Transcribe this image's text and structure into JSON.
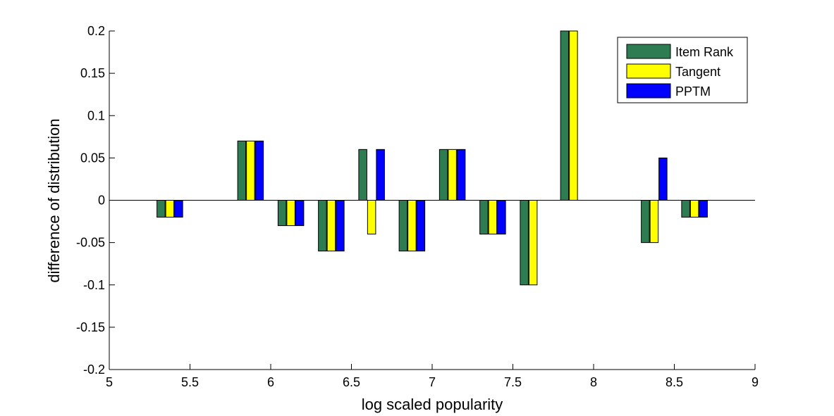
{
  "chart_data": {
    "type": "bar",
    "title": "",
    "xlabel": "log scaled popularity",
    "ylabel": "difference of distribution",
    "xlim": [
      5,
      9
    ],
    "ylim": [
      -0.2,
      0.2
    ],
    "x_ticks": [
      5,
      5.5,
      6,
      6.5,
      7,
      7.5,
      8,
      8.5,
      9
    ],
    "x_tick_labels": [
      "5",
      "5.5",
      "6",
      "6.5",
      "7",
      "7.5",
      "8",
      "8.5",
      "9"
    ],
    "y_ticks": [
      -0.2,
      -0.15,
      -0.1,
      -0.05,
      0,
      0.05,
      0.1,
      0.15,
      0.2
    ],
    "y_tick_labels": [
      "-0.2",
      "-0.15",
      "-0.1",
      "-0.05",
      "0",
      "0.05",
      "0.1",
      "0.15",
      "0.2"
    ],
    "x": [
      5.375,
      5.875,
      6.125,
      6.375,
      6.625,
      6.875,
      7.125,
      7.375,
      7.625,
      7.875,
      8.125,
      8.375,
      8.625
    ],
    "series": [
      {
        "name": "Item Rank",
        "color": "#2e7d52",
        "values": [
          -0.02,
          0.07,
          -0.03,
          -0.06,
          0.06,
          -0.06,
          0.06,
          -0.04,
          -0.1,
          0.2,
          0,
          -0.05,
          -0.02
        ]
      },
      {
        "name": "Tangent",
        "color": "#ffff00",
        "values": [
          -0.02,
          0.07,
          -0.03,
          -0.06,
          -0.04,
          -0.06,
          0.06,
          -0.04,
          -0.1,
          0.2,
          0,
          -0.05,
          -0.02
        ]
      },
      {
        "name": "PPTM",
        "color": "#0000ff",
        "values": [
          -0.02,
          0.07,
          -0.03,
          -0.06,
          0.06,
          -0.06,
          0.06,
          -0.04,
          0,
          0,
          0,
          0.05,
          -0.02
        ]
      }
    ],
    "legend_position": "top-right",
    "grid": false
  }
}
